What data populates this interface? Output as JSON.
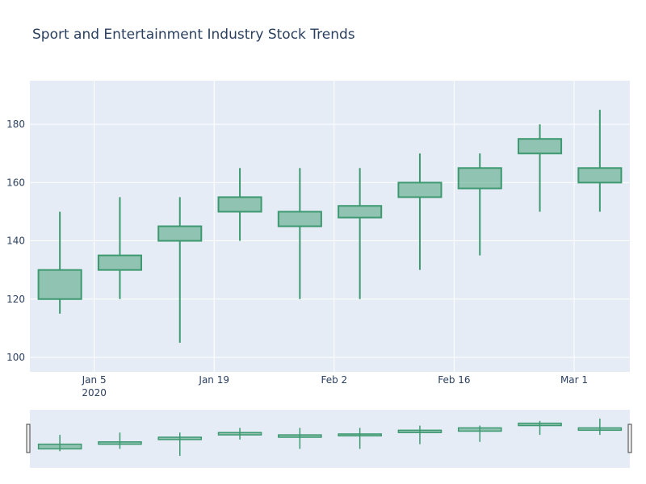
{
  "chart_data": {
    "type": "candlestick",
    "title": "Sport and Entertainment Industry Stock Trends",
    "xlabel": "",
    "ylabel": "",
    "ylim": [
      95,
      195
    ],
    "yticks": [
      100,
      120,
      140,
      160,
      180
    ],
    "xtick_labels": [
      {
        "label": "Jan 5",
        "sub": "2020"
      },
      {
        "label": "Jan 19",
        "sub": ""
      },
      {
        "label": "Feb 2",
        "sub": ""
      },
      {
        "label": "Feb 16",
        "sub": ""
      },
      {
        "label": "Mar 1",
        "sub": ""
      }
    ],
    "series": [
      {
        "date": "2020-01-01",
        "open": 120,
        "high": 150,
        "low": 115,
        "close": 130
      },
      {
        "date": "2020-01-08",
        "open": 130,
        "high": 155,
        "low": 120,
        "close": 135
      },
      {
        "date": "2020-01-15",
        "open": 140,
        "high": 155,
        "low": 105,
        "close": 145
      },
      {
        "date": "2020-01-22",
        "open": 150,
        "high": 165,
        "low": 140,
        "close": 155
      },
      {
        "date": "2020-01-29",
        "open": 145,
        "high": 165,
        "low": 120,
        "close": 150
      },
      {
        "date": "2020-02-05",
        "open": 148,
        "high": 165,
        "low": 120,
        "close": 152
      },
      {
        "date": "2020-02-12",
        "open": 155,
        "high": 170,
        "low": 130,
        "close": 160
      },
      {
        "date": "2020-02-19",
        "open": 158,
        "high": 170,
        "low": 135,
        "close": 165
      },
      {
        "date": "2020-02-26",
        "open": 170,
        "high": 180,
        "low": 150,
        "close": 175
      },
      {
        "date": "2020-03-04",
        "open": 160,
        "high": 185,
        "low": 150,
        "close": 165
      }
    ],
    "colors": {
      "increasing": "#3d9970",
      "increasing_fill": "rgba(61,153,112,0.5)",
      "plot_bg": "#e5ecf6",
      "grid": "#ffffff",
      "text": "#2a3f5f"
    },
    "rangeslider": true,
    "grid": true
  }
}
